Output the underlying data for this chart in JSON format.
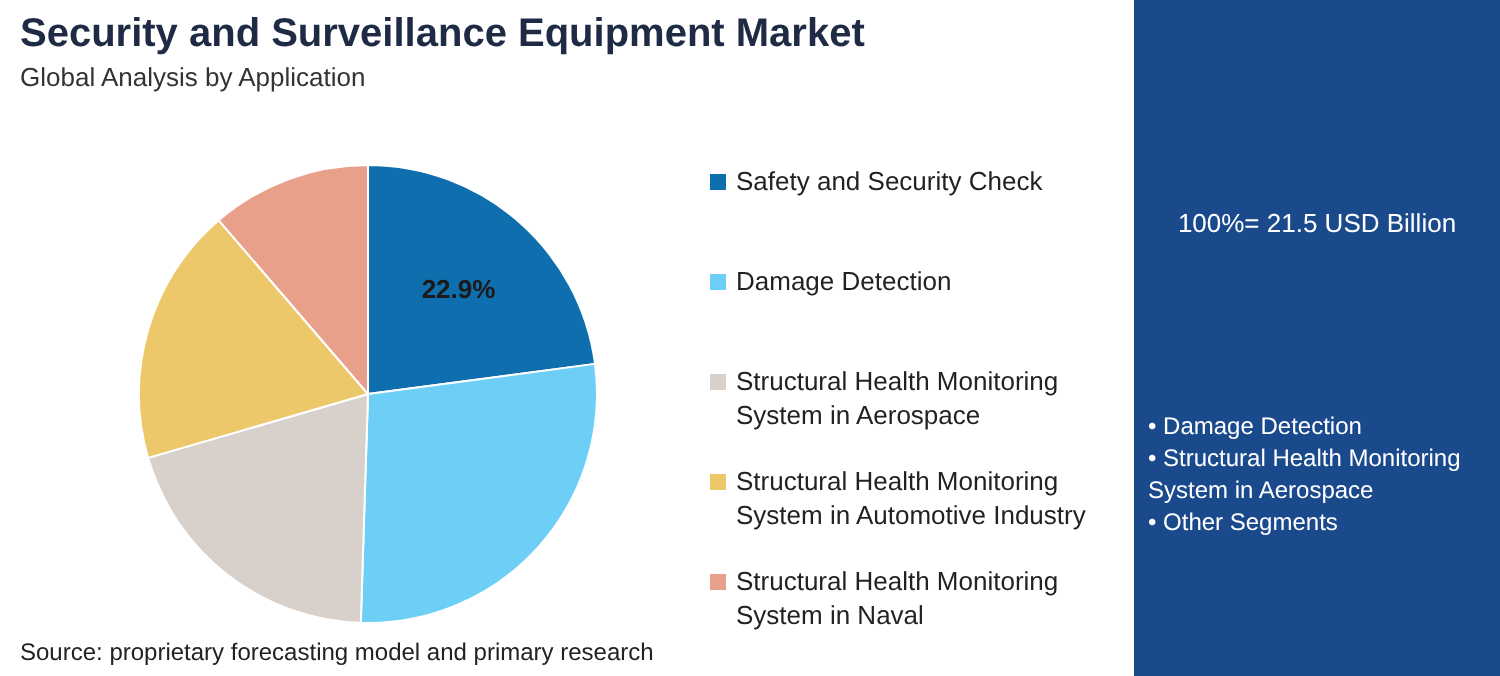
{
  "chart_data": {
    "type": "pie",
    "title": "Security and Surveillance Equipment Market",
    "subtitle": "Global Analysis by Application",
    "categories": [
      "Safety and Security Check",
      "Damage Detection",
      "Structural Health Monitoring System in Aerospace",
      "Structural Health Monitoring System in Automotive Industry",
      "Structural Health Monitoring System in Naval"
    ],
    "values": [
      22.9,
      27.6,
      20,
      18.2,
      11.3
    ],
    "colors": [
      "#0f6fae",
      "#6dcff6",
      "#d8d1cb",
      "#edc86a",
      "#e9a08b"
    ],
    "value_labels": [
      "22.9%",
      null,
      null,
      null,
      null
    ],
    "legend": "right",
    "annotations": [
      "100%= 21.5 USD Billion",
      "• Damage Detection",
      "• Structural Health Monitoring System in Aerospace",
      "• Other Segments",
      "Source: proprietary forecasting model and primary research"
    ]
  }
}
